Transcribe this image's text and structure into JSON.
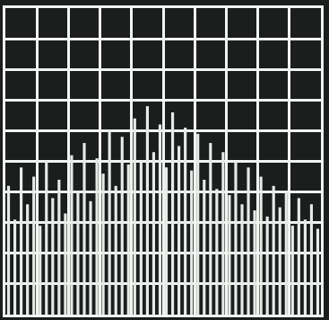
{
  "chart_data": {
    "type": "bar",
    "x": [
      0.1,
      0.3,
      0.5,
      0.7,
      0.9,
      1.1,
      1.3,
      1.5,
      1.7,
      1.9,
      2.1,
      2.3,
      2.5,
      2.7,
      2.9,
      3.1,
      3.3,
      3.5,
      3.7,
      3.9,
      4.1,
      4.3,
      4.5,
      4.7,
      4.9,
      5.1,
      5.3,
      5.5,
      5.7,
      5.9,
      6.1,
      6.3,
      6.5,
      6.7,
      6.9,
      7.1,
      7.3,
      7.5,
      7.7,
      7.9,
      8.1,
      8.3,
      8.5,
      8.7,
      8.9,
      9.1,
      9.3,
      9.5,
      9.7,
      9.9
    ],
    "values": [
      4.2,
      3.1,
      4.8,
      3.6,
      4.5,
      2.9,
      5.0,
      3.8,
      4.4,
      3.3,
      5.2,
      4.0,
      5.6,
      3.7,
      5.1,
      4.6,
      6.0,
      4.2,
      5.8,
      4.9,
      6.4,
      5.0,
      6.8,
      5.3,
      6.2,
      4.8,
      6.6,
      5.5,
      6.1,
      4.7,
      5.9,
      4.4,
      5.6,
      4.1,
      5.3,
      3.9,
      5.0,
      3.6,
      4.8,
      3.4,
      4.5,
      3.2,
      4.2,
      3.5,
      4.0,
      2.9,
      3.8,
      3.1,
      3.6,
      2.8
    ],
    "color": "#e6ebe7",
    "xlim": [
      0,
      10
    ],
    "ylim": [
      0,
      10
    ],
    "xticks": [
      0,
      1,
      2,
      3,
      4,
      5,
      6,
      7,
      8,
      9,
      10
    ],
    "yticks": [
      0,
      1,
      2,
      3,
      4,
      5,
      6,
      7,
      8,
      9,
      10
    ],
    "grid": true,
    "tick_labels": false
  }
}
